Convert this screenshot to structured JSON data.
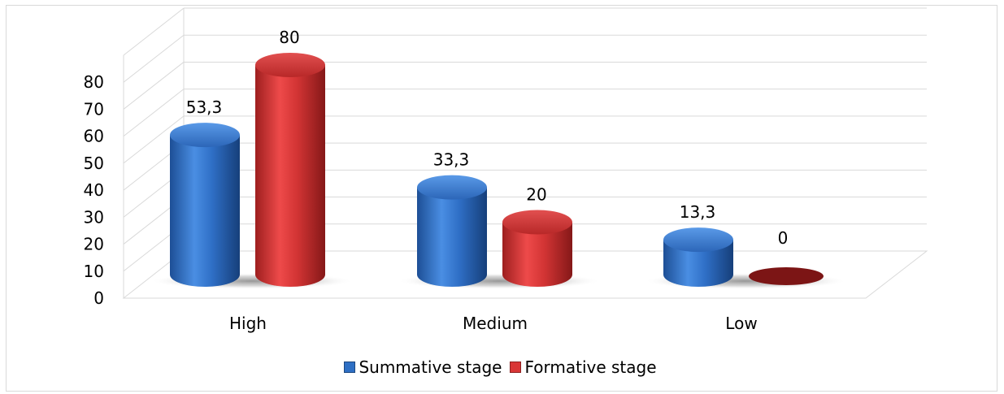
{
  "chart_data": {
    "type": "bar",
    "style": "3d-cylinder",
    "categories": [
      "High",
      "Medium",
      "Low"
    ],
    "series": [
      {
        "name": "Summative stage",
        "values": [
          53.3,
          33.3,
          13.3
        ],
        "labels": [
          "53,3",
          "33,3",
          "13,3"
        ],
        "color": "#2e6fc4"
      },
      {
        "name": "Formative stage",
        "values": [
          80,
          20,
          0
        ],
        "labels": [
          "80",
          "20",
          "0"
        ],
        "color": "#d93636"
      }
    ],
    "yticks": [
      "0",
      "10",
      "20",
      "30",
      "40",
      "50",
      "60",
      "70",
      "80"
    ],
    "ylim": [
      0,
      90
    ],
    "grid": true,
    "legend_position": "bottom"
  }
}
